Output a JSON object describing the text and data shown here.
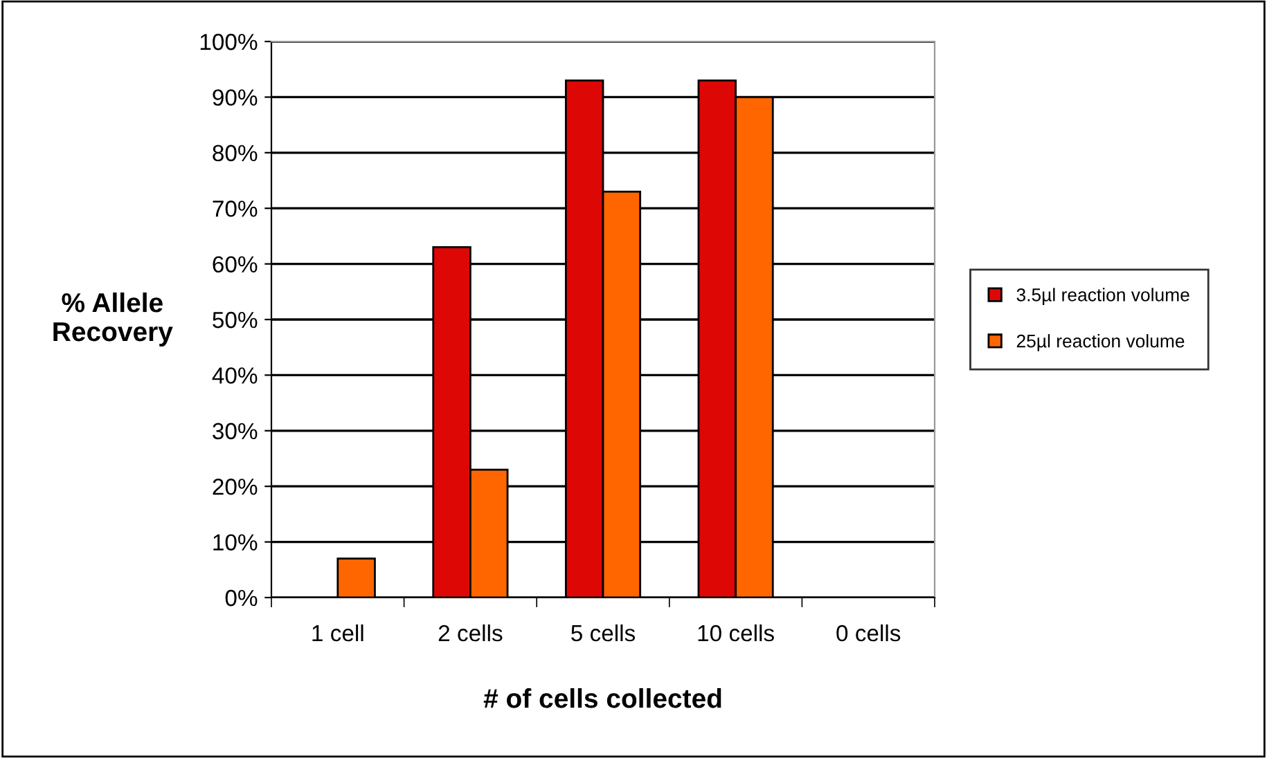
{
  "chart_data": {
    "type": "bar",
    "xlabel": "# of cells collected",
    "ylabel": "% Allele\nRecovery",
    "categories": [
      "1 cell",
      "2 cells",
      "5 cells",
      "10 cells",
      "0 cells"
    ],
    "series": [
      {
        "name": "3.5µl reaction volume",
        "color": "#dd0806",
        "values": [
          null,
          63,
          93,
          93,
          null
        ]
      },
      {
        "name": "25µl reaction volume",
        "color": "#ff6600",
        "values": [
          7,
          23,
          73,
          90,
          null
        ]
      }
    ],
    "ylim": [
      0,
      100
    ],
    "yticks": [
      {
        "value": 0,
        "label": "0%"
      },
      {
        "value": 10,
        "label": "10%"
      },
      {
        "value": 20,
        "label": "20%"
      },
      {
        "value": 30,
        "label": "30%"
      },
      {
        "value": 40,
        "label": "40%"
      },
      {
        "value": 50,
        "label": "50%"
      },
      {
        "value": 60,
        "label": "60%"
      },
      {
        "value": 70,
        "label": "70%"
      },
      {
        "value": 80,
        "label": "80%"
      },
      {
        "value": 90,
        "label": "90%"
      },
      {
        "value": 100,
        "label": "100%"
      }
    ],
    "grid": "y",
    "legend": "right"
  }
}
